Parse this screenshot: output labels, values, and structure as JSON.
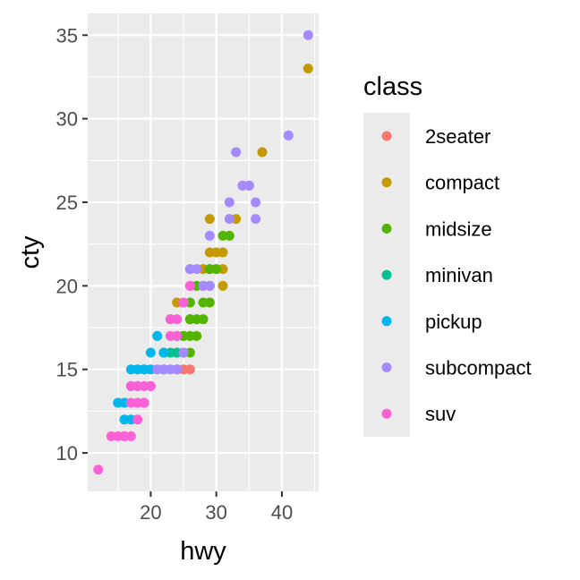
{
  "chart_data": {
    "type": "scatter",
    "title": "",
    "xlabel": "hwy",
    "ylabel": "cty",
    "xlim": [
      10.4,
      45.6
    ],
    "ylim": [
      7.7,
      36.3
    ],
    "x_ticks": [
      20,
      30,
      40
    ],
    "y_ticks": [
      10,
      15,
      20,
      25,
      30,
      35
    ],
    "grid": true,
    "legend": {
      "title": "class",
      "placement": "right",
      "entries": [
        {
          "name": "2seater",
          "color": "#F8766D"
        },
        {
          "name": "compact",
          "color": "#C49A00"
        },
        {
          "name": "midsize",
          "color": "#53B400"
        },
        {
          "name": "minivan",
          "color": "#00C094"
        },
        {
          "name": "pickup",
          "color": "#00B6EB"
        },
        {
          "name": "subcompact",
          "color": "#A58AFF"
        },
        {
          "name": "suv",
          "color": "#FB61D7"
        }
      ]
    },
    "series": [
      {
        "name": "2seater",
        "x": [
          24,
          25,
          26
        ],
        "y": [
          15,
          15,
          15
        ]
      },
      {
        "name": "compact",
        "x": [
          44,
          37,
          35,
          34,
          33,
          29,
          30,
          31,
          29,
          31,
          28,
          26,
          24,
          23,
          25,
          29,
          31,
          26
        ],
        "y": [
          33,
          28,
          26,
          26,
          24,
          24,
          22,
          22,
          21,
          21,
          21,
          21,
          19,
          18,
          17,
          22,
          20,
          18
        ]
      },
      {
        "name": "midsize",
        "x": [
          31,
          32,
          29,
          30,
          27,
          28,
          26,
          29,
          28,
          27,
          26,
          25,
          26,
          25,
          27,
          24,
          26,
          28,
          29
        ],
        "y": [
          23,
          23,
          21,
          21,
          20,
          20,
          19,
          19,
          18,
          18,
          17,
          17,
          16,
          16,
          17,
          16,
          18,
          19,
          20
        ]
      },
      {
        "name": "minivan",
        "x": [
          24,
          22,
          23,
          24,
          22
        ],
        "y": [
          17,
          16,
          16,
          16,
          16
        ]
      },
      {
        "name": "pickup",
        "x": [
          19,
          21,
          22,
          20,
          19,
          17,
          18,
          16,
          17,
          15,
          16,
          18,
          17,
          20,
          22
        ],
        "y": [
          15,
          17,
          16,
          16,
          15,
          15,
          15,
          13,
          12,
          13,
          12,
          14,
          14,
          15,
          15
        ]
      },
      {
        "name": "subcompact",
        "x": [
          44,
          41,
          33,
          34,
          32,
          36,
          35,
          36,
          32,
          29,
          26,
          28,
          27,
          26,
          29,
          22,
          23,
          24,
          25,
          21
        ],
        "y": [
          35,
          29,
          28,
          26,
          25,
          25,
          26,
          24,
          24,
          23,
          21,
          20,
          21,
          20,
          20,
          15,
          15,
          15,
          16,
          15
        ]
      },
      {
        "name": "suv",
        "x": [
          12,
          14,
          15,
          16,
          17,
          18,
          19,
          20,
          17,
          18,
          17,
          19,
          20,
          18,
          19,
          23,
          24,
          25,
          26,
          23,
          24,
          16
        ],
        "y": [
          9,
          11,
          11,
          11,
          11,
          12,
          13,
          14,
          14,
          13,
          13,
          13,
          14,
          14,
          14,
          18,
          18,
          19,
          20,
          17,
          17,
          11
        ]
      }
    ]
  }
}
